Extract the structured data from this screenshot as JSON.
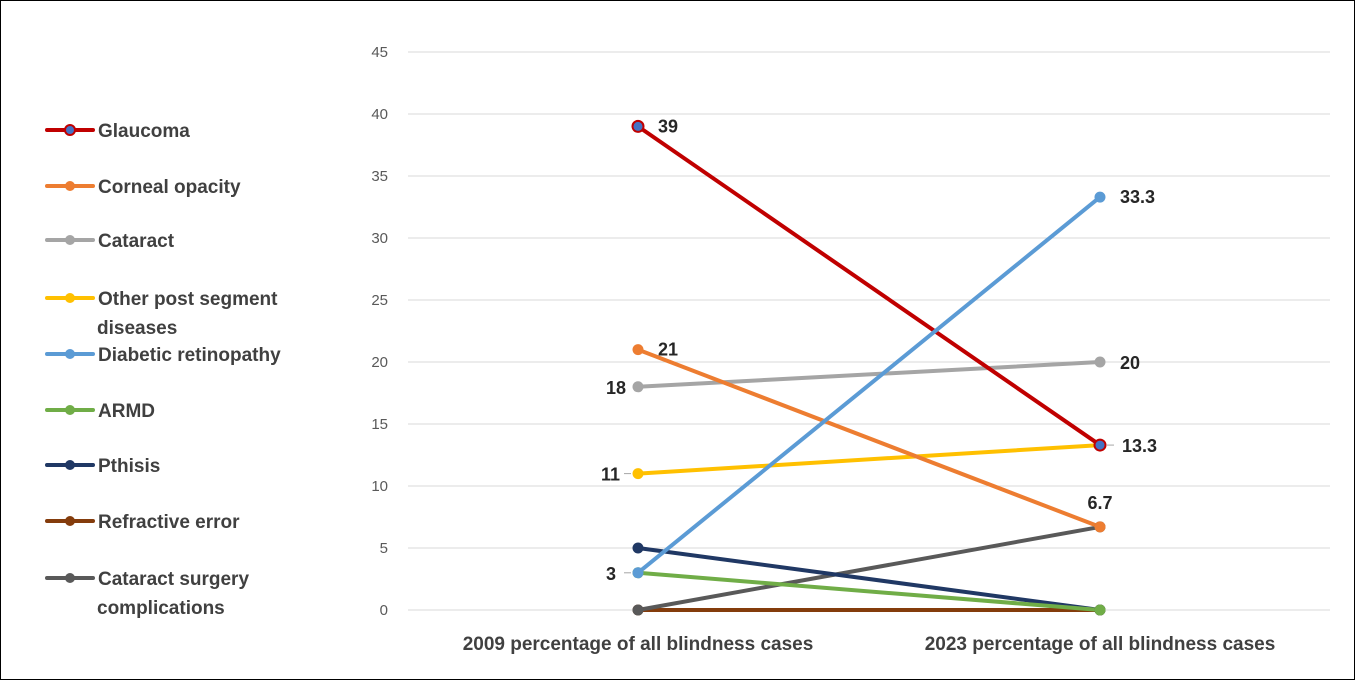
{
  "chart_data": {
    "type": "line",
    "categories": [
      "2009 percentage of all blindness cases",
      "2023 percentage of all blindness cases"
    ],
    "ylim": [
      0,
      45
    ],
    "yticks": [
      0,
      5,
      10,
      15,
      20,
      25,
      30,
      35,
      40,
      45
    ],
    "grid": true,
    "legend_position": "left",
    "series": [
      {
        "name": "Glaucoma",
        "values": [
          39,
          13.3
        ],
        "color": "#C00000",
        "marker_color": "#4472C4",
        "labels": [
          "39",
          null
        ]
      },
      {
        "name": "Corneal opacity",
        "values": [
          21,
          6.7
        ],
        "color": "#ED7D31",
        "labels": [
          "21",
          null
        ]
      },
      {
        "name": "Cataract",
        "values": [
          18,
          20
        ],
        "color": "#A5A5A5",
        "labels": [
          "18",
          "20"
        ]
      },
      {
        "name": "Other post segment diseases",
        "values": [
          11,
          13.3
        ],
        "color": "#FFC000",
        "labels": [
          "11",
          "13.3"
        ]
      },
      {
        "name": "Diabetic retinopathy",
        "values": [
          3,
          33.3
        ],
        "color": "#5B9BD5",
        "labels": [
          "3",
          "33.3"
        ]
      },
      {
        "name": "ARMD",
        "values": [
          3,
          0
        ],
        "color": "#70AD47",
        "labels": [
          null,
          null
        ]
      },
      {
        "name": "Pthisis",
        "values": [
          5,
          0
        ],
        "color": "#203864",
        "labels": [
          null,
          null
        ]
      },
      {
        "name": "Refractive error",
        "values": [
          0,
          0
        ],
        "color": "#843C0C",
        "labels": [
          null,
          null
        ]
      },
      {
        "name": "Cataract surgery complications",
        "values": [
          0,
          6.7
        ],
        "color": "#595959",
        "labels": [
          null,
          "6.7"
        ]
      }
    ]
  }
}
